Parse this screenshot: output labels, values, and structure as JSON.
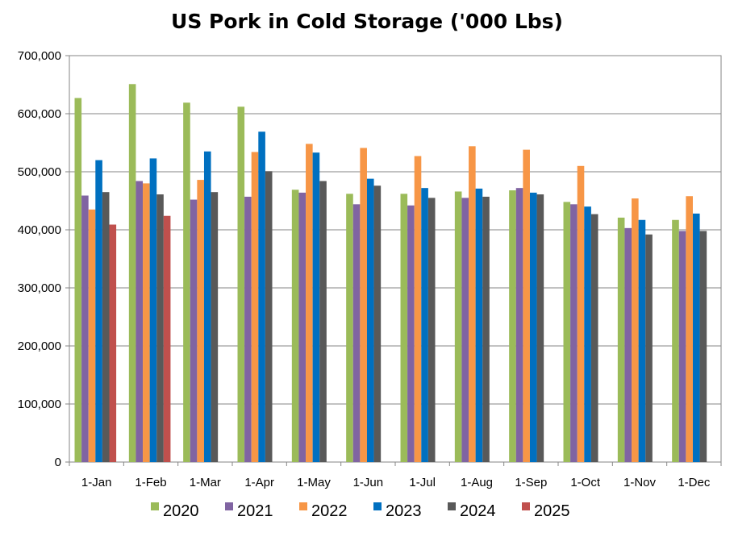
{
  "chart_data": {
    "type": "bar",
    "title": "US Pork in Cold Storage ('000 Lbs)",
    "xlabel": "",
    "ylabel": "",
    "ylim": [
      0,
      700000
    ],
    "y_ticks": [
      "0",
      "100,000",
      "200,000",
      "300,000",
      "400,000",
      "500,000",
      "600,000",
      "700,000"
    ],
    "grid": true,
    "legend_position": "bottom",
    "categories": [
      "1-Jan",
      "1-Feb",
      "1-Mar",
      "1-Apr",
      "1-May",
      "1-Jun",
      "1-Jul",
      "1-Aug",
      "1-Sep",
      "1-Oct",
      "1-Nov",
      "1-Dec"
    ],
    "series": [
      {
        "name": "2020",
        "color": "#9bbb59",
        "values": [
          627000,
          651000,
          619000,
          612000,
          469000,
          462000,
          462000,
          466000,
          468000,
          448000,
          421000,
          417000
        ]
      },
      {
        "name": "2021",
        "color": "#8064a2",
        "values": [
          459000,
          484000,
          452000,
          457000,
          464000,
          444000,
          442000,
          455000,
          472000,
          444000,
          403000,
          398000
        ]
      },
      {
        "name": "2022",
        "color": "#f79646",
        "values": [
          435000,
          480000,
          486000,
          534000,
          548000,
          541000,
          527000,
          544000,
          538000,
          510000,
          454000,
          458000
        ]
      },
      {
        "name": "2023",
        "color": "#0070c0",
        "values": [
          520000,
          523000,
          535000,
          569000,
          533000,
          488000,
          472000,
          471000,
          464000,
          440000,
          417000,
          428000
        ]
      },
      {
        "name": "2024",
        "color": "#595959",
        "values": [
          465000,
          461000,
          465000,
          501000,
          484000,
          476000,
          455000,
          457000,
          461000,
          427000,
          392000,
          398000
        ]
      },
      {
        "name": "2025",
        "color": "#c0504d",
        "values": [
          409000,
          424000,
          null,
          null,
          null,
          null,
          null,
          null,
          null,
          null,
          null,
          null
        ]
      }
    ]
  }
}
